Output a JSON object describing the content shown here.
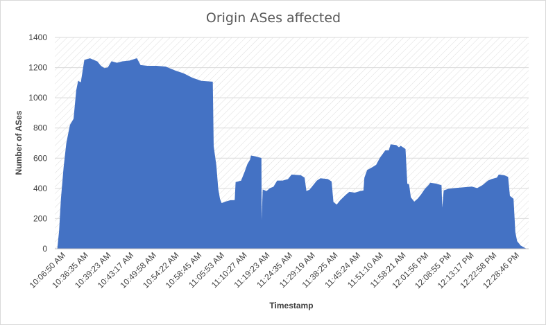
{
  "chart_data": {
    "type": "area",
    "title": "Origin ASes affected",
    "xlabel": "Timestamp",
    "ylabel": "Number of ASes",
    "ylim": [
      0,
      1400
    ],
    "yticks": [
      0,
      200,
      400,
      600,
      800,
      1000,
      1200,
      1400
    ],
    "grid": "horizontal-major, diagonal-hatch-background",
    "legend": "none",
    "series_color": "#4472c4",
    "x_tick_labels": [
      "10:06:50 AM",
      "10:36:35 AM",
      "10:39:23 AM",
      "10:43:17 AM",
      "10:49:58 AM",
      "10:54:22 AM",
      "10:58:45 AM",
      "11:05:53 AM",
      "11:10:27 AM",
      "11:19:23 AM",
      "11:24:35 AM",
      "11:29:19 AM",
      "11:38:25 AM",
      "11:45:24 AM",
      "11:51:10 AM",
      "11:58:21 AM",
      "12:01:56 PM",
      "12:08:55 PM",
      "12:13:17 PM",
      "12:22:58 PM",
      "12:28:46 PM"
    ],
    "series": [
      {
        "values": [
          [
            0,
            0
          ],
          [
            0.1,
            120
          ],
          [
            0.2,
            330
          ],
          [
            0.35,
            540
          ],
          [
            0.5,
            700
          ],
          [
            0.7,
            820
          ],
          [
            0.9,
            860
          ],
          [
            1.05,
            1050
          ],
          [
            1.15,
            1110
          ],
          [
            1.3,
            1100
          ],
          [
            1.5,
            1250
          ],
          [
            1.8,
            1260
          ],
          [
            2.0,
            1250
          ],
          [
            2.2,
            1240
          ],
          [
            2.4,
            1210
          ],
          [
            2.6,
            1195
          ],
          [
            2.8,
            1200
          ],
          [
            3.0,
            1240
          ],
          [
            3.3,
            1230
          ],
          [
            3.6,
            1240
          ],
          [
            4.0,
            1245
          ],
          [
            4.4,
            1260
          ],
          [
            4.6,
            1215
          ],
          [
            5.0,
            1210
          ],
          [
            5.5,
            1210
          ],
          [
            6.0,
            1205
          ],
          [
            6.5,
            1180
          ],
          [
            7.0,
            1160
          ],
          [
            7.5,
            1130
          ],
          [
            8.0,
            1110
          ],
          [
            8.6,
            1105
          ],
          [
            8.65,
            680
          ],
          [
            8.8,
            550
          ],
          [
            8.9,
            400
          ],
          [
            9.0,
            330
          ],
          [
            9.1,
            300
          ],
          [
            9.3,
            310
          ],
          [
            9.6,
            320
          ],
          [
            9.85,
            320
          ],
          [
            9.9,
            440
          ],
          [
            10.2,
            450
          ],
          [
            10.4,
            510
          ],
          [
            10.55,
            560
          ],
          [
            10.7,
            590
          ],
          [
            10.75,
            615
          ],
          [
            11.0,
            610
          ],
          [
            11.3,
            600
          ],
          [
            11.32,
            90
          ],
          [
            11.4,
            390
          ],
          [
            11.6,
            380
          ],
          [
            11.8,
            400
          ],
          [
            12.0,
            410
          ],
          [
            12.2,
            450
          ],
          [
            12.5,
            450
          ],
          [
            12.8,
            460
          ],
          [
            13.0,
            490
          ],
          [
            13.5,
            485
          ],
          [
            13.7,
            470
          ],
          [
            13.8,
            380
          ],
          [
            14.0,
            390
          ],
          [
            14.2,
            420
          ],
          [
            14.4,
            450
          ],
          [
            14.6,
            465
          ],
          [
            15.0,
            460
          ],
          [
            15.2,
            445
          ],
          [
            15.3,
            310
          ],
          [
            15.5,
            290
          ],
          [
            15.7,
            320
          ],
          [
            16.0,
            355
          ],
          [
            16.2,
            375
          ],
          [
            16.5,
            370
          ],
          [
            16.8,
            380
          ],
          [
            17.0,
            385
          ],
          [
            17.05,
            470
          ],
          [
            17.2,
            520
          ],
          [
            17.5,
            540
          ],
          [
            17.7,
            555
          ],
          [
            17.9,
            600
          ],
          [
            18.2,
            650
          ],
          [
            18.4,
            650
          ],
          [
            18.5,
            690
          ],
          [
            18.8,
            685
          ],
          [
            18.95,
            670
          ],
          [
            19.05,
            680
          ],
          [
            19.3,
            660
          ],
          [
            19.4,
            430
          ],
          [
            19.5,
            425
          ],
          [
            19.6,
            340
          ],
          [
            19.8,
            310
          ],
          [
            20.0,
            330
          ],
          [
            20.2,
            360
          ],
          [
            20.4,
            395
          ],
          [
            20.6,
            420
          ],
          [
            20.7,
            435
          ],
          [
            21.0,
            430
          ],
          [
            21.3,
            420
          ],
          [
            21.35,
            240
          ],
          [
            21.45,
            385
          ],
          [
            21.7,
            395
          ],
          [
            22.0,
            400
          ],
          [
            22.5,
            405
          ],
          [
            23.0,
            410
          ],
          [
            23.3,
            400
          ],
          [
            23.6,
            420
          ],
          [
            23.9,
            450
          ],
          [
            24.1,
            460
          ],
          [
            24.4,
            470
          ],
          [
            24.5,
            490
          ],
          [
            24.8,
            485
          ],
          [
            25.0,
            475
          ],
          [
            25.1,
            350
          ],
          [
            25.3,
            330
          ],
          [
            25.4,
            110
          ],
          [
            25.5,
            50
          ],
          [
            25.7,
            20
          ],
          [
            26.0,
            0
          ]
        ]
      }
    ]
  }
}
